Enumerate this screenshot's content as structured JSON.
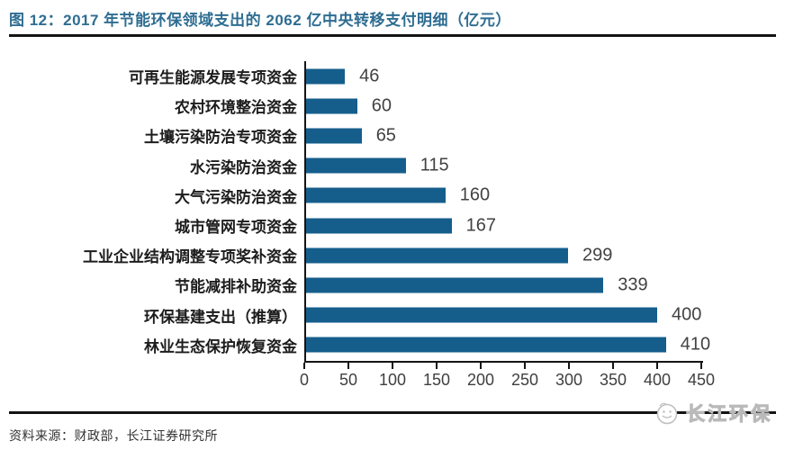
{
  "header": {
    "title": "图 12：2017 年节能环保领域支出的 2062 亿中央转移支付明细（亿元）"
  },
  "chart_data": {
    "type": "bar",
    "orientation": "horizontal",
    "title": "2017 年节能环保领域支出的 2062 亿中央转移支付明细（亿元）",
    "categories": [
      "可再生能源发展专项资金",
      "农村环境整治资金",
      "土壤污染防治专项资金",
      "水污染防治资金",
      "大气污染防治资金",
      "城市管网专项资金",
      "工业企业结构调整专项奖补资金",
      "节能减排补助资金",
      "环保基建支出（推算）",
      "林业生态保护恢复资金"
    ],
    "values": [
      46,
      60,
      65,
      115,
      160,
      167,
      299,
      339,
      400,
      410
    ],
    "xlabel": "",
    "ylabel": "",
    "xlim": [
      0,
      450
    ],
    "xticks": [
      0,
      50,
      100,
      150,
      200,
      250,
      300,
      350,
      400,
      450
    ],
    "grid": false,
    "legend": "none",
    "value_labels_shown": true,
    "bar_color": "#155E8C"
  },
  "footer": {
    "source": "资料来源：财政部，长江证券研究所",
    "watermark": "长江环保"
  },
  "colors": {
    "title_text": "#2E6D92",
    "bar": "#155E8C",
    "axis": "#141414",
    "watermark": "#c9c9c9"
  }
}
